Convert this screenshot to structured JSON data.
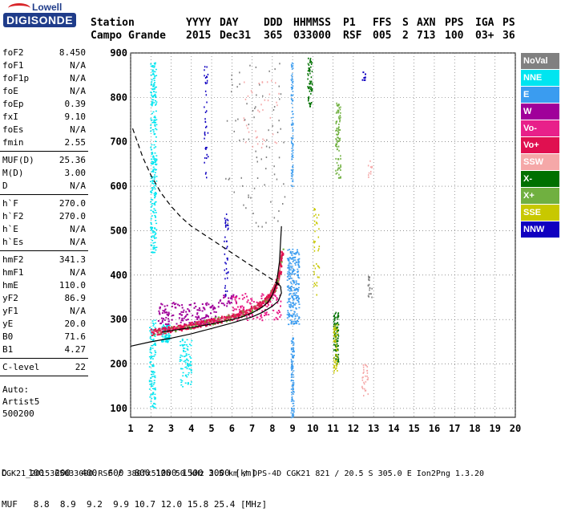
{
  "logo": {
    "line1": "Lowell",
    "line2": "DIGISONDE"
  },
  "header": {
    "labels": [
      "Station",
      "YYYY",
      "DAY",
      "DDD",
      "HHMMSS",
      "P1",
      "FFS",
      "S",
      "AXN",
      "PPS",
      "IGA",
      "PS"
    ],
    "values": [
      "Campo Grande",
      "2015",
      "Dec31",
      "365",
      "033000",
      "RSF",
      "005",
      "2",
      "713",
      "100",
      "03+",
      "36"
    ]
  },
  "params": [
    {
      "k": "foF2",
      "v": "8.450"
    },
    {
      "k": "foF1",
      "v": "N/A"
    },
    {
      "k": "foF1p",
      "v": "N/A"
    },
    {
      "k": "foE",
      "v": "N/A"
    },
    {
      "k": "foEp",
      "v": "0.39"
    },
    {
      "k": "fxI",
      "v": "9.10"
    },
    {
      "k": "foEs",
      "v": "N/A"
    },
    {
      "k": "fmin",
      "v": "2.55"
    },
    {
      "sep": true
    },
    {
      "k": "MUF(D)",
      "v": "25.36"
    },
    {
      "k": "M(D)",
      "v": "3.00"
    },
    {
      "k": "D",
      "v": "N/A"
    },
    {
      "sep": true
    },
    {
      "k": "h`F",
      "v": "270.0"
    },
    {
      "k": "h`F2",
      "v": "270.0"
    },
    {
      "k": "h`E",
      "v": "N/A"
    },
    {
      "k": "h`Es",
      "v": "N/A"
    },
    {
      "sep": true
    },
    {
      "k": "hmF2",
      "v": "341.3"
    },
    {
      "k": "hmF1",
      "v": "N/A"
    },
    {
      "k": "hmE",
      "v": "110.0"
    },
    {
      "k": "yF2",
      "v": "86.9"
    },
    {
      "k": "yF1",
      "v": "N/A"
    },
    {
      "k": "yE",
      "v": "20.0"
    },
    {
      "k": "B0",
      "v": "71.6"
    },
    {
      "k": "B1",
      "v": "4.27"
    },
    {
      "sep": true
    },
    {
      "k": "C-level",
      "v": "22"
    },
    {
      "sep": true
    }
  ],
  "auto": [
    "Auto:",
    "Artist5",
    "500200"
  ],
  "legend": [
    {
      "label": "NoVal",
      "color": "#808080"
    },
    {
      "label": "NNE",
      "color": "#00e5f0"
    },
    {
      "label": "E",
      "color": "#3a9cf0"
    },
    {
      "label": "W",
      "color": "#a0009a"
    },
    {
      "label": "Vo-",
      "color": "#e8208a"
    },
    {
      "label": "Vo+",
      "color": "#e01050"
    },
    {
      "label": "SSW",
      "color": "#f5a8a8"
    },
    {
      "label": "X-",
      "color": "#007000"
    },
    {
      "label": "X+",
      "color": "#70b040"
    },
    {
      "label": "SSE",
      "color": "#c8c800"
    },
    {
      "label": "NNW",
      "color": "#1000c0"
    }
  ],
  "footer": {
    "row1": "D    100  200  400  600  800 1000 1500 3000 [km]",
    "row2": "MUF   8.8  8.9  9.2  9.9 10.7 12.0 15.8 25.4 [MHz]",
    "status": "CGK21_2015365033000.RSF / 380fx512h 50 kHz 2.5 km / DPS-4D CGK21 821 / 20.5 S 305.0 E Ion2Png 1.3.20"
  },
  "chart_data": {
    "type": "scatter",
    "xlim": [
      1,
      20
    ],
    "ylim": [
      80,
      900
    ],
    "x_ticks": [
      1,
      2,
      3,
      4,
      5,
      6,
      7,
      8,
      9,
      10,
      11,
      12,
      13,
      14,
      15,
      16,
      17,
      18,
      19,
      20
    ],
    "y_ticks": [
      100,
      200,
      300,
      400,
      500,
      600,
      700,
      800,
      900
    ],
    "grid": true,
    "series": [
      {
        "name": "Vo+",
        "style": "trace",
        "color": "#e01050",
        "x": [
          2.0,
          2.5,
          3.0,
          3.5,
          4.0,
          4.5,
          5.0,
          5.5,
          6.0,
          6.5,
          7.0,
          7.5,
          7.8,
          8.0,
          8.2,
          8.35,
          8.45
        ],
        "y": [
          272,
          276,
          280,
          284,
          288,
          292,
          297,
          302,
          308,
          315,
          325,
          338,
          350,
          365,
          385,
          410,
          455
        ]
      },
      {
        "name": "true-height",
        "style": "line",
        "color": "#000000",
        "x": [
          2.55,
          3.0,
          4.0,
          5.0,
          6.0,
          6.5,
          7.0,
          7.5,
          7.8,
          8.0,
          8.2,
          8.35,
          8.45
        ],
        "y": [
          272,
          275,
          282,
          290,
          300,
          306,
          315,
          328,
          340,
          355,
          380,
          430,
          510
        ]
      },
      {
        "name": "model",
        "style": "line",
        "color": "#000000",
        "x": [
          1.0,
          2.0,
          3.0,
          4.0,
          5.0,
          6.0,
          7.0,
          7.5,
          8.0,
          8.3,
          8.45,
          8.4,
          8.2
        ],
        "y": [
          240,
          250,
          258,
          268,
          280,
          292,
          306,
          316,
          330,
          342,
          360,
          375,
          385
        ]
      },
      {
        "name": "MUF",
        "style": "dashed",
        "color": "#000000",
        "x": [
          1.1,
          1.6,
          2.0,
          2.5,
          3.0,
          3.5,
          4.0,
          5.0,
          6.0,
          7.0,
          8.0,
          8.45
        ],
        "y": [
          730,
          665,
          625,
          585,
          555,
          530,
          510,
          480,
          450,
          420,
          390,
          372
        ]
      }
    ]
  }
}
